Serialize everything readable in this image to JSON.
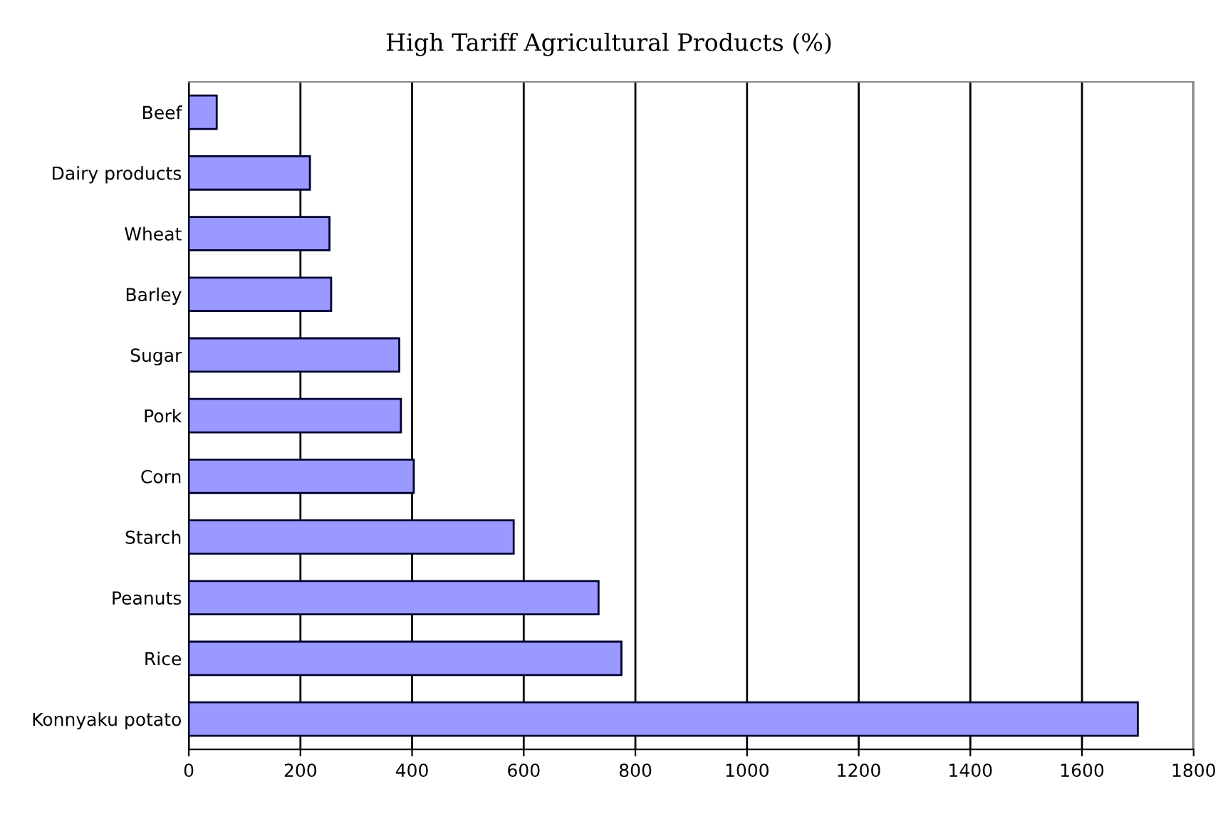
{
  "chart_data": {
    "type": "bar",
    "orientation": "horizontal",
    "title": "High Tariff Agricultural Products (%)",
    "categories": [
      "Beef",
      "Dairy products",
      "Wheat",
      "Barley",
      "Sugar",
      "Pork",
      "Corn",
      "Starch",
      "Peanuts",
      "Rice",
      "Konnyaku potato"
    ],
    "values": [
      50,
      217,
      252,
      255,
      377,
      380,
      403,
      582,
      734,
      775,
      1700
    ],
    "color": "#9999ff",
    "xlim": [
      0,
      1800
    ],
    "xticks": [
      0,
      200,
      400,
      600,
      800,
      1000,
      1200,
      1400,
      1600,
      1800
    ],
    "grid": "x"
  }
}
